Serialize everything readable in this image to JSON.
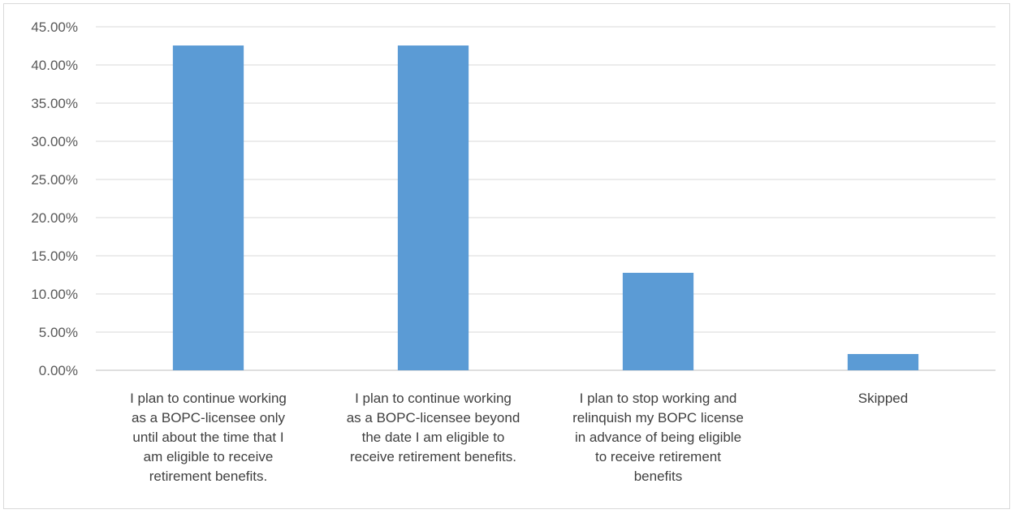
{
  "chart_data": {
    "type": "bar",
    "title": "",
    "xlabel": "",
    "ylabel": "",
    "ylim": [
      0,
      45
    ],
    "y_step": 5,
    "y_tick_format": "percent-2dp",
    "grid": true,
    "legend": "none",
    "bar_color": "#5b9bd5",
    "categories": [
      [
        "I plan to continue working",
        "as a BOPC-licensee only",
        "until about the time that I",
        "am eligible to receive",
        "retirement benefits."
      ],
      [
        "I plan to continue working",
        "as a BOPC-licensee beyond",
        "the date I am eligible to",
        "receive retirement benefits."
      ],
      [
        "I plan to stop working and",
        "relinquish my BOPC license",
        "in advance of being eligible",
        "to receive retirement",
        "benefits"
      ],
      [
        "Skipped"
      ]
    ],
    "values": [
      42.55,
      42.55,
      12.77,
      2.13
    ]
  }
}
